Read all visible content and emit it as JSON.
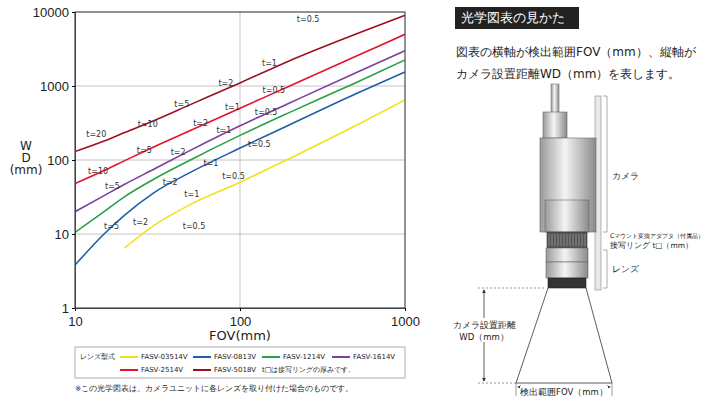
{
  "chart_data": {
    "type": "line",
    "log": true,
    "grid": true,
    "x_label": "FOV(mm)",
    "y_label": [
      "W",
      "D",
      "(mm)"
    ],
    "xlim": [
      10,
      1000
    ],
    "ylim": [
      1,
      10000
    ],
    "xticks": [
      10,
      100,
      1000
    ],
    "yticks": [
      1,
      10,
      100,
      1000,
      10000
    ],
    "x": [
      10,
      15,
      20,
      30,
      50,
      100,
      200,
      500,
      1000
    ],
    "series": [
      {
        "name": "FASV-03514V",
        "color": "#f2e21b",
        "values": [
          null,
          null,
          6.5,
          13,
          25,
          50,
          105,
          290,
          650
        ]
      },
      {
        "name": "FASV-0813V",
        "color": "#1f5ea8",
        "values": [
          3.8,
          10,
          18,
          36,
          68,
          145,
          300,
          780,
          1550
        ]
      },
      {
        "name": "FASV-1214V",
        "color": "#27a046",
        "values": [
          10.5,
          20,
          32,
          55,
          100,
          215,
          440,
          1100,
          2250
        ]
      },
      {
        "name": "FASV-1614V",
        "color": "#7b3f9e",
        "values": [
          20,
          33,
          47,
          75,
          135,
          290,
          590,
          1500,
          3000
        ]
      },
      {
        "name": "FASV-2514V",
        "color": "#e3132e",
        "values": [
          48,
          72,
          98,
          150,
          250,
          500,
          1000,
          2500,
          5000
        ]
      },
      {
        "name": "FASV-5018V",
        "color": "#9b1020",
        "values": [
          130,
          180,
          235,
          340,
          560,
          1100,
          2200,
          5000,
          9000
        ]
      }
    ],
    "annotations": [
      {
        "text": "t=0.5",
        "x": 221,
        "y": 7800
      },
      {
        "text": "t=1",
        "x": 136,
        "y": 1990
      },
      {
        "text": "t=2",
        "x": 74,
        "y": 1070
      },
      {
        "text": "t=0.5",
        "x": 137,
        "y": 880
      },
      {
        "text": "t=5",
        "x": 40,
        "y": 570
      },
      {
        "text": "t=1",
        "x": 81,
        "y": 520
      },
      {
        "text": "t=0.5",
        "x": 123,
        "y": 445
      },
      {
        "text": "t=20",
        "x": 11.7,
        "y": 218
      },
      {
        "text": "t=10",
        "x": 24,
        "y": 306
      },
      {
        "text": "t=2",
        "x": 52,
        "y": 315
      },
      {
        "text": "t=1",
        "x": 72,
        "y": 254
      },
      {
        "text": "t=5",
        "x": 23.7,
        "y": 136
      },
      {
        "text": "t=2",
        "x": 38,
        "y": 128
      },
      {
        "text": "t=0.5",
        "x": 112,
        "y": 160
      },
      {
        "text": "t=1",
        "x": 60,
        "y": 91
      },
      {
        "text": "t=10",
        "x": 12,
        "y": 71
      },
      {
        "text": "t=0.5",
        "x": 78,
        "y": 59
      },
      {
        "text": "t=5",
        "x": 15.2,
        "y": 44
      },
      {
        "text": "t=2",
        "x": 34,
        "y": 49
      },
      {
        "text": "t=1",
        "x": 46,
        "y": 34
      },
      {
        "text": "t=5",
        "x": 15,
        "y": 12.8
      },
      {
        "text": "t=2",
        "x": 22.5,
        "y": 14.5
      },
      {
        "text": "t=0.5",
        "x": 45,
        "y": 12.8
      }
    ],
    "legend_title": "レンズ型式",
    "legend_note": "t□は接写リングの厚みです。",
    "footnote": "※この光学図表は、カメラユニットに各レンズを取り付けた場合のものです。"
  },
  "explanation": {
    "heading": "光学図表の見かた",
    "description": [
      "図表の横軸が検出範囲FOV（mm）、縦軸が",
      "カメラ設置距離WD（mm）を表します。"
    ],
    "camera": "カメラ",
    "adapter": "Cマウント変換アダプタ（付属品）",
    "ring": "接写リング t□（mm）",
    "lens": "レンズ",
    "wd": [
      "カメラ設置距離",
      "WD（mm）"
    ],
    "fov": "検出範囲FOV（mm）"
  }
}
